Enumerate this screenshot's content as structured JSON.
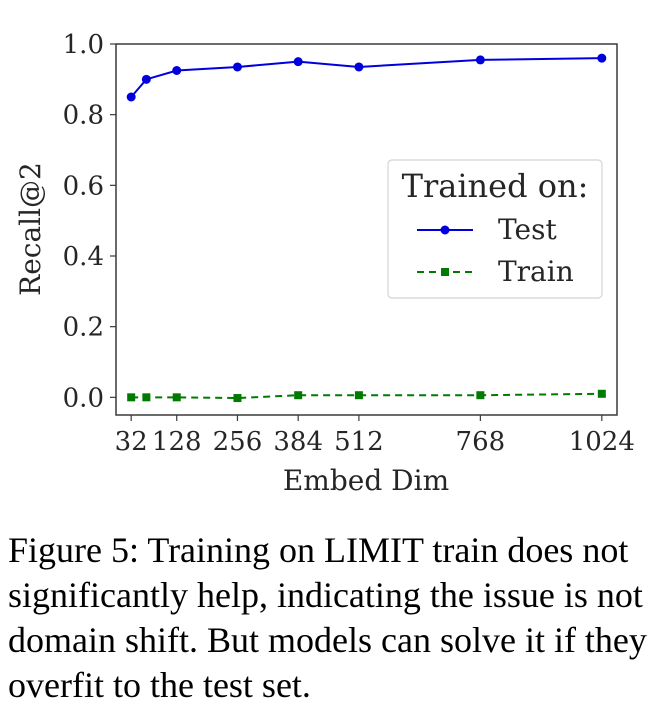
{
  "chart_data": {
    "type": "line",
    "x": [
      32,
      64,
      128,
      256,
      384,
      512,
      768,
      1024
    ],
    "xticks": [
      32,
      128,
      256,
      384,
      512,
      768,
      1024
    ],
    "xlabel": "Embed Dim",
    "ylabel": "Recall@2",
    "yticks": [
      0.0,
      0.2,
      0.4,
      0.6,
      0.8,
      1.0
    ],
    "ylim": [
      -0.05,
      1.0
    ],
    "xlim": [
      0,
      1056
    ],
    "grid": false,
    "legend_title": "Trained on:",
    "legend_position": "center-right",
    "series": [
      {
        "name": "Test",
        "color": "#0000dd",
        "marker": "circle",
        "linestyle": "solid",
        "values": [
          0.85,
          0.9,
          0.925,
          0.935,
          0.95,
          0.935,
          0.955,
          0.96
        ]
      },
      {
        "name": "Train",
        "color": "#007a00",
        "marker": "square",
        "linestyle": "dashed",
        "values": [
          0.0,
          0.0,
          0.0,
          -0.002,
          0.006,
          0.006,
          0.006,
          0.01
        ]
      }
    ]
  },
  "caption": "Figure 5: Training on LIMIT train does not significantly help, indicating the issue is not domain shift. But models can solve it if they overfit to the test set."
}
